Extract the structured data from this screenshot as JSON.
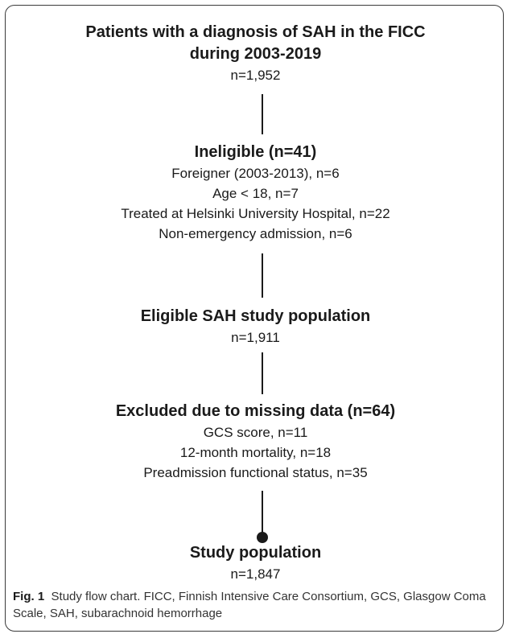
{
  "boxes": [
    {
      "title_lines": [
        "Patients with a diagnosis of SAH in the FICC",
        "during 2003-2019"
      ],
      "lines": [
        "n=1,952"
      ]
    },
    {
      "title_lines": [
        "Ineligible (n=41)"
      ],
      "lines": [
        "Foreigner (2003-2013), n=6",
        "Age < 18, n=7",
        "Treated at Helsinki University Hospital, n=22",
        "Non-emergency admission, n=6"
      ]
    },
    {
      "title_lines": [
        "Eligible SAH study population"
      ],
      "lines": [
        "n=1,911"
      ]
    },
    {
      "title_lines": [
        "Excluded due to missing data (n=64)"
      ],
      "lines": [
        "GCS score, n=11",
        "12-month mortality, n=18",
        "Preadmission functional status, n=35"
      ]
    },
    {
      "title_lines": [
        "Study population"
      ],
      "lines": [
        "n=1,847"
      ]
    }
  ],
  "caption": {
    "label": "Fig. 1",
    "text": "Study flow chart. FICC, Finnish Intensive Care Consortium, GCS, Glasgow Coma Scale, SAH, subarachnoid hemorrhage"
  }
}
